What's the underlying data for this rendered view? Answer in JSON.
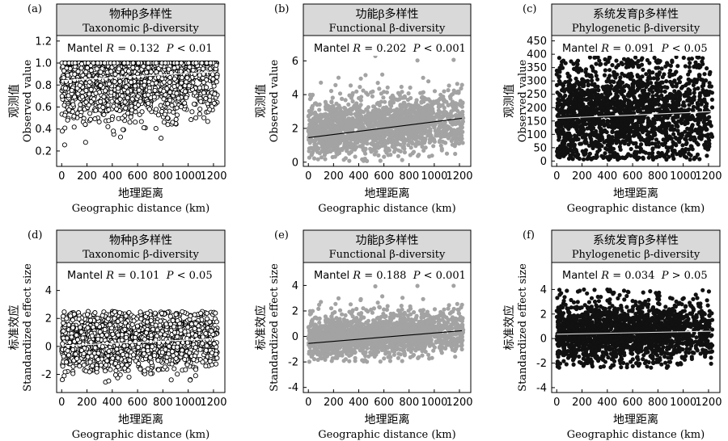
{
  "chart_data": [
    {
      "type": "scatter",
      "panel_label": "(a)",
      "title_cn": "物种β多样性",
      "title_en": "Taxonomic β-diversity",
      "stat": {
        "prefix": "Mantel ",
        "r_symbol": "R",
        "r_rel": " = ",
        "r_value": "0.132",
        "p_symbol": "P",
        "p_rel": " < ",
        "p_value": "0.01"
      },
      "xlabel_cn": "地理距离",
      "xlabel_en": "Geographic distance (km)",
      "ylabel_cn": "观测值",
      "ylabel_en": "Observed value",
      "xlim": [
        -40,
        1290
      ],
      "ylim": [
        0.06,
        1.25
      ],
      "xticks": [
        0,
        200,
        400,
        600,
        800,
        1000,
        1200
      ],
      "xtick_labels": [
        "0",
        "200",
        "400",
        "600",
        "800",
        "1000",
        "1200"
      ],
      "yticks": [
        0.2,
        0.4,
        0.6,
        0.8,
        1.0,
        1.2
      ],
      "ytick_labels": [
        "0.2",
        "0.4",
        "0.6",
        "0.8",
        "1.0",
        "1.2"
      ],
      "marker": "hollow-circle",
      "marker_color": "#000000",
      "trend_color": "#ffffff",
      "trend": {
        "x": [
          0,
          1220
        ],
        "y": [
          0.84,
          0.92
        ]
      },
      "points_summary": {
        "n": 1800,
        "x_range": [
          0,
          1230
        ],
        "y_range": [
          0.12,
          1.0
        ],
        "y_center": 0.82,
        "y_spread": 0.17,
        "cap": 1.0
      }
    },
    {
      "type": "scatter",
      "panel_label": "(b)",
      "title_cn": "功能β多样性",
      "title_en": "Functional β-diversity",
      "stat": {
        "prefix": "Mantel ",
        "r_symbol": "R",
        "r_rel": " = ",
        "r_value": "0.202",
        "p_symbol": "P",
        "p_rel": " < ",
        "p_value": "0.001"
      },
      "xlabel_cn": "地理距离",
      "xlabel_en": "Geographic distance (km)",
      "ylabel_cn": "观测值",
      "ylabel_en": "Observed value",
      "xlim": [
        -40,
        1290
      ],
      "ylim": [
        -0.25,
        7.5
      ],
      "xticks": [
        0,
        200,
        400,
        600,
        800,
        1000,
        1200
      ],
      "xtick_labels": [
        "0",
        "200",
        "400",
        "600",
        "800",
        "1000",
        "1200"
      ],
      "yticks": [
        0,
        2,
        4,
        6
      ],
      "ytick_labels": [
        "0",
        "2",
        "4",
        "6"
      ],
      "marker": "filled-circle",
      "marker_color": "#a3a3a3",
      "trend_color": "#000000",
      "trend": {
        "x": [
          0,
          1220
        ],
        "y": [
          1.45,
          2.6
        ]
      },
      "points_summary": {
        "n": 1900,
        "x_range": [
          0,
          1230
        ],
        "y_range": [
          0.05,
          6.3
        ],
        "y_center": 1.8,
        "y_spread": 0.8
      }
    },
    {
      "type": "scatter",
      "panel_label": "(c)",
      "title_cn": "系统发育β多样性",
      "title_en": "Phylogenetic β-diversity",
      "stat": {
        "prefix": "Mantel ",
        "r_symbol": "R",
        "r_rel": " = ",
        "r_value": "0.091",
        "p_symbol": "P",
        "p_rel": " < ",
        "p_value": "0.05"
      },
      "xlabel_cn": "地理距离",
      "xlabel_en": "Geographic distance (km)",
      "ylabel_cn": "观测值",
      "ylabel_en": "Observed value",
      "xlim": [
        -40,
        1290
      ],
      "ylim": [
        -20,
        470
      ],
      "xticks": [
        0,
        200,
        400,
        600,
        800,
        1000,
        1200
      ],
      "xtick_labels": [
        "0",
        "200",
        "400",
        "600",
        "800",
        "1000",
        "1200"
      ],
      "yticks": [
        0,
        50,
        100,
        150,
        200,
        250,
        300,
        350,
        400,
        450
      ],
      "ytick_labels": [
        "0",
        "50",
        "100",
        "150",
        "200",
        "250",
        "300",
        "350",
        "400",
        "450"
      ],
      "marker": "filled-circle",
      "marker_color": "#111111",
      "trend_color": "#e0e0e0",
      "trend": {
        "x": [
          0,
          1220
        ],
        "y": [
          160,
          185
        ]
      },
      "points_summary": {
        "n": 1900,
        "x_range": [
          0,
          1230
        ],
        "y_range": [
          5,
          390
        ],
        "y_center": 170,
        "y_spread": 100
      }
    },
    {
      "type": "scatter",
      "panel_label": "(d)",
      "title_cn": "物种β多样性",
      "title_en": "Taxonomic β-diversity",
      "stat": {
        "prefix": "Mantel ",
        "r_symbol": "R",
        "r_rel": " = ",
        "r_value": "0.101",
        "p_symbol": "P",
        "p_rel": " < ",
        "p_value": "0.05"
      },
      "xlabel_cn": "地理距离",
      "xlabel_en": "Geographic distance (km)",
      "ylabel_cn": "标准效应",
      "ylabel_en": "Standardized effect size",
      "xlim": [
        -40,
        1290
      ],
      "ylim": [
        -3.3,
        6.0
      ],
      "xticks": [
        0,
        200,
        400,
        600,
        800,
        1000,
        1200
      ],
      "xtick_labels": [
        "0",
        "200",
        "400",
        "600",
        "800",
        "1000",
        "1200"
      ],
      "yticks": [
        -2,
        0,
        2,
        4
      ],
      "ytick_labels": [
        "-2",
        "0",
        "2",
        "4"
      ],
      "marker": "hollow-circle",
      "marker_color": "#000000",
      "trend_color": "#ffffff",
      "trend": {
        "x": [
          0,
          1220
        ],
        "y": [
          0.05,
          0.55
        ]
      },
      "points_summary": {
        "n": 1800,
        "x_range": [
          0,
          1230
        ],
        "y_range": [
          -2.9,
          2.5
        ],
        "y_center": 0.2,
        "y_spread": 1.0
      }
    },
    {
      "type": "scatter",
      "panel_label": "(e)",
      "title_cn": "功能β多样性",
      "title_en": "Functional β-diversity",
      "stat": {
        "prefix": "Mantel ",
        "r_symbol": "R",
        "r_rel": " = ",
        "r_value": "0.188",
        "p_symbol": "P",
        "p_rel": " < ",
        "p_value": "0.001"
      },
      "xlabel_cn": "地理距离",
      "xlabel_en": "Geographic distance (km)",
      "ylabel_cn": "标准效应",
      "ylabel_en": "Standardized effect size",
      "xlim": [
        -40,
        1290
      ],
      "ylim": [
        -4.4,
        5.8
      ],
      "xticks": [
        0,
        200,
        400,
        600,
        800,
        1000,
        1200
      ],
      "xtick_labels": [
        "0",
        "200",
        "400",
        "600",
        "800",
        "1000",
        "1200"
      ],
      "yticks": [
        -4,
        -2,
        0,
        2,
        4
      ],
      "ytick_labels": [
        "-4",
        "-2",
        "0",
        "2",
        "4"
      ],
      "marker": "filled-circle",
      "marker_color": "#a3a3a3",
      "trend_color": "#000000",
      "trend": {
        "x": [
          0,
          1220
        ],
        "y": [
          -0.55,
          0.45
        ]
      },
      "points_summary": {
        "n": 1900,
        "x_range": [
          0,
          1230
        ],
        "y_range": [
          -2.0,
          4.0
        ],
        "y_center": -0.2,
        "y_spread": 0.8
      }
    },
    {
      "type": "scatter",
      "panel_label": "(f)",
      "title_cn": "系统发育β多样性",
      "title_en": "Phylogenetic β-diversity",
      "stat": {
        "prefix": "Mantel ",
        "r_symbol": "R",
        "r_rel": " = ",
        "r_value": "0.034",
        "p_symbol": "P",
        "p_rel": " > ",
        "p_value": "0.05"
      },
      "xlabel_cn": "地理距离",
      "xlabel_en": "Geographic distance (km)",
      "ylabel_cn": "标准效应",
      "ylabel_en": "Standardized effect size",
      "xlim": [
        -40,
        1290
      ],
      "ylim": [
        -4.4,
        6.2
      ],
      "xticks": [
        0,
        200,
        400,
        600,
        800,
        1000,
        1200
      ],
      "xtick_labels": [
        "0",
        "200",
        "400",
        "600",
        "800",
        "1000",
        "1200"
      ],
      "yticks": [
        -4,
        -2,
        0,
        2,
        4
      ],
      "ytick_labels": [
        "-4",
        "-2",
        "0",
        "2",
        "4"
      ],
      "marker": "filled-circle",
      "marker_color": "#111111",
      "trend_color": "#e0e0e0",
      "trend": {
        "x": [
          0,
          1220
        ],
        "y": [
          0.35,
          0.6
        ]
      },
      "points_summary": {
        "n": 1900,
        "x_range": [
          0,
          1230
        ],
        "y_range": [
          -2.4,
          4.0
        ],
        "y_center": 0.4,
        "y_spread": 1.2
      }
    }
  ]
}
